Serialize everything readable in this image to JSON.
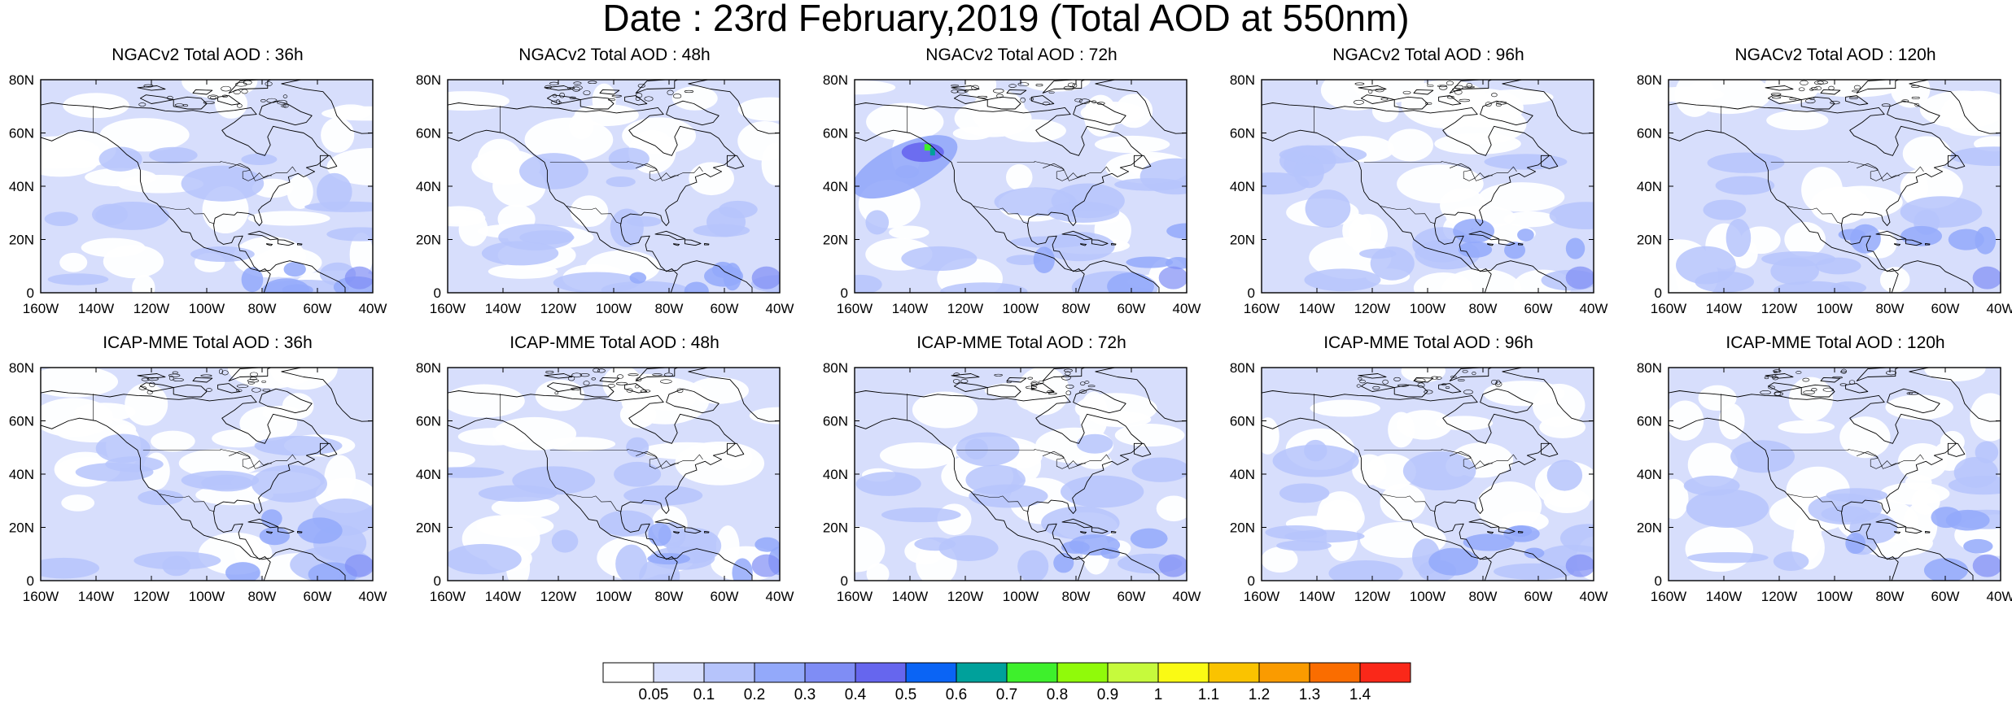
{
  "title": "Date : 23rd February,2019 (Total AOD at 550nm)",
  "map_extent": {
    "lon": [
      -160,
      -40
    ],
    "lat": [
      0,
      80
    ]
  },
  "lon_ticks": [
    "160W",
    "140W",
    "120W",
    "100W",
    "80W",
    "60W",
    "40W"
  ],
  "lat_ticks": [
    "0",
    "20N",
    "40N",
    "60N",
    "80N"
  ],
  "panels": [
    {
      "title": "NGACv2 Total AOD : 36h",
      "hotspot": false
    },
    {
      "title": "NGACv2 Total AOD : 48h",
      "hotspot": false
    },
    {
      "title": "NGACv2 Total AOD : 72h",
      "hotspot": true
    },
    {
      "title": "NGACv2 Total AOD : 96h",
      "hotspot": false
    },
    {
      "title": "NGACv2 Total AOD : 120h",
      "hotspot": false
    },
    {
      "title": "ICAP-MME Total AOD : 36h",
      "hotspot": false
    },
    {
      "title": "ICAP-MME Total AOD : 48h",
      "hotspot": false
    },
    {
      "title": "ICAP-MME Total AOD : 72h",
      "hotspot": false
    },
    {
      "title": "ICAP-MME Total AOD : 96h",
      "hotspot": false
    },
    {
      "title": "ICAP-MME Total AOD : 120h",
      "hotspot": false
    }
  ],
  "colorbar": {
    "labels": [
      "0.05",
      "0.1",
      "0.2",
      "0.3",
      "0.4",
      "0.5",
      "0.6",
      "0.7",
      "0.8",
      "0.9",
      "1",
      "1.1",
      "1.2",
      "1.3",
      "1.4"
    ],
    "colors": [
      "#ffffff",
      "#d7defc",
      "#b6c4fb",
      "#93a9fa",
      "#7f8df5",
      "#6666ee",
      "#0a64f5",
      "#00a19b",
      "#3ef02c",
      "#90fa0a",
      "#c6fa3c",
      "#fafa14",
      "#fac300",
      "#fa9b00",
      "#fa6d00",
      "#fa2819"
    ]
  }
}
